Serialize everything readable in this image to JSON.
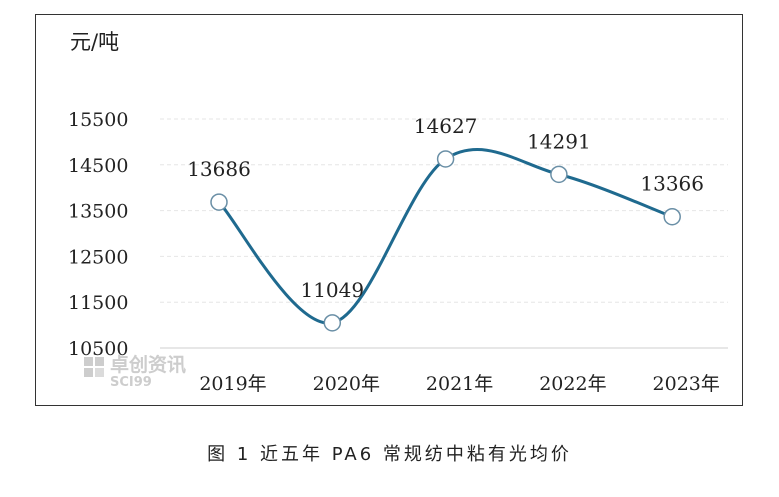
{
  "chart_data": {
    "type": "line",
    "title": "",
    "unit_label": "元/吨",
    "categories": [
      "2019年",
      "2020年",
      "2021年",
      "2022年",
      "2023年"
    ],
    "series": [
      {
        "values": [
          13686,
          11049,
          14627,
          14291,
          13366
        ]
      }
    ],
    "y_ticks": [
      "15500",
      "14500",
      "13500",
      "12500",
      "11500",
      "10500"
    ],
    "ylim": [
      10500,
      16000
    ],
    "grid": true,
    "smooth": true,
    "line_color": "#1f6a8f",
    "marker_fill": "#ffffff",
    "grid_color": "#e6e6e6"
  },
  "watermark": {
    "text": "卓创资讯",
    "sub": "SCI99"
  },
  "caption": "图 1  近五年 PA6 常规纺中粘有光均价"
}
